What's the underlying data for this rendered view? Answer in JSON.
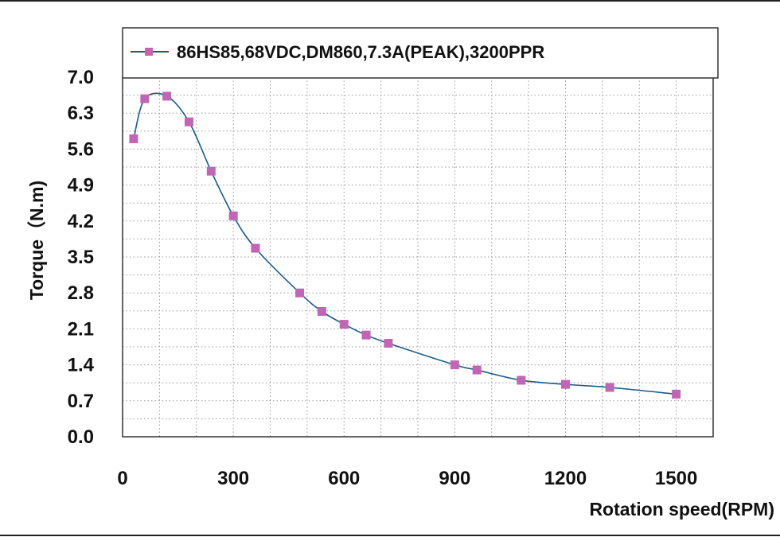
{
  "chart_data": {
    "type": "line",
    "title": "",
    "xlabel": "Rotation speed(RPM)",
    "ylabel": "Torque（N.m)",
    "xlim": [
      0,
      1600
    ],
    "ylim": [
      0,
      7.0
    ],
    "x_ticks": [
      0,
      300,
      600,
      900,
      1200,
      1500
    ],
    "x_tick_labels": [
      "0",
      "300",
      "600",
      "900",
      "1200",
      "1500"
    ],
    "y_ticks": [
      0,
      0.7,
      1.4,
      2.1,
      2.8,
      3.5,
      4.2,
      4.9,
      5.6,
      6.3,
      7.0
    ],
    "y_tick_labels": [
      "0.0",
      "0.7",
      "1.4",
      "2.1",
      "2.8",
      "3.5",
      "4.2",
      "4.9",
      "5.6",
      "6.3",
      "7.0"
    ],
    "grid": true,
    "legend_position": "top",
    "series": [
      {
        "name": "86HS85,68VDC,DM860,7.3A(PEAK),3200PPR",
        "color": "#1b5a86",
        "marker_color": "#c066b4",
        "marker": "square",
        "x": [
          30,
          60,
          120,
          180,
          240,
          300,
          360,
          480,
          540,
          600,
          660,
          720,
          900,
          960,
          1080,
          1200,
          1320,
          1500
        ],
        "y": [
          5.8,
          6.58,
          6.63,
          6.13,
          5.17,
          4.3,
          3.67,
          2.8,
          2.44,
          2.19,
          1.98,
          1.82,
          1.4,
          1.3,
          1.1,
          1.02,
          0.96,
          0.83
        ]
      }
    ]
  }
}
